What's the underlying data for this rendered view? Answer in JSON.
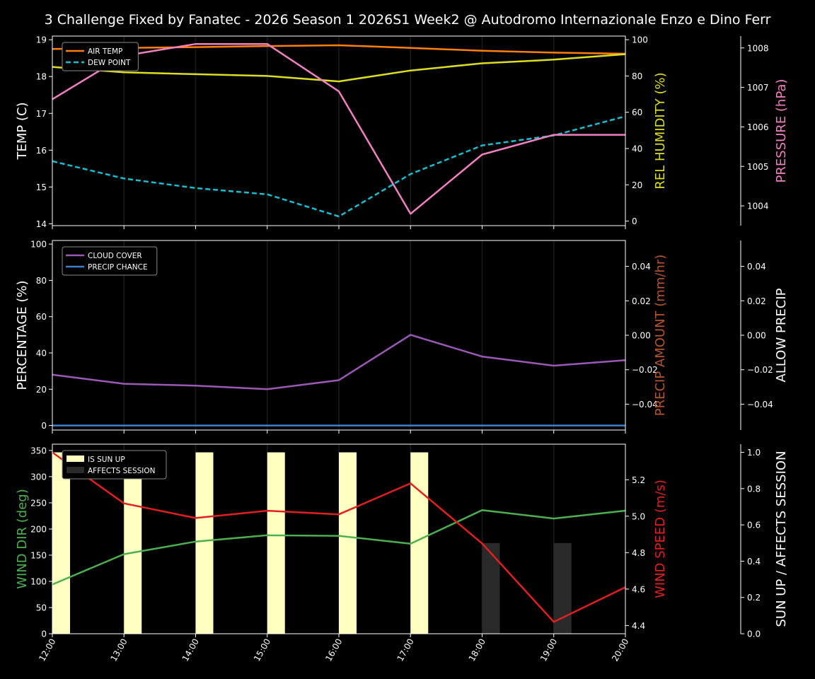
{
  "title": "3 Challenge Fixed by Fanatec - 2026 Season 1 2026S1 Week2 @ Autodromo Internazionale Enzo e Dino Ferr",
  "chart_data": [
    {
      "type": "line",
      "x": [
        "12:00",
        "13:00",
        "14:00",
        "15:00",
        "16:00",
        "17:00",
        "18:00",
        "19:00",
        "20:00"
      ],
      "series": [
        {
          "name": "AIR TEMP",
          "axis": "TEMP (C)",
          "color": "#ff7f0e",
          "style": "solid",
          "values": [
            18.75,
            18.78,
            18.8,
            18.83,
            18.85,
            18.78,
            18.7,
            18.65,
            18.62
          ]
        },
        {
          "name": "DEW POINT",
          "axis": "TEMP (C)",
          "color": "#17becf",
          "style": "dashed",
          "values": [
            15.7,
            15.23,
            14.97,
            14.8,
            14.2,
            15.35,
            16.13,
            16.4,
            16.92
          ]
        },
        {
          "name": "",
          "axis": "REL HUMIDITY (%)",
          "color": "#dddd22",
          "style": "solid",
          "values": [
            85,
            82,
            81,
            80,
            77,
            83,
            87,
            89,
            92
          ]
        },
        {
          "name": "",
          "axis": "PRESSURE (hPa)",
          "color": "#f080c0",
          "style": "solid",
          "values": [
            1006.7,
            1007.8,
            1008.1,
            1008.1,
            1006.9,
            1003.8,
            1005.3,
            1005.8,
            1005.8
          ]
        }
      ],
      "axes": [
        {
          "label": "TEMP (C)",
          "side": "left",
          "ylim": [
            13.95,
            19.1
          ],
          "ticks": [
            14,
            15,
            16,
            17,
            18,
            19
          ],
          "color": "#ffffff"
        },
        {
          "label": "REL HUMIDITY (%)",
          "side": "right",
          "ylim": [
            -2.5,
            102
          ],
          "ticks": [
            0,
            20,
            40,
            60,
            80,
            100
          ],
          "color": "#dddd22"
        },
        {
          "label": "PRESSURE (hPa)",
          "side": "far-right",
          "ylim": [
            1003.5,
            1008.3
          ],
          "ticks": [
            1004,
            1005,
            1006,
            1007,
            1008
          ],
          "color": "#f080c0"
        }
      ],
      "legend": "top-left",
      "grid": false
    },
    {
      "type": "line",
      "x": [
        "12:00",
        "13:00",
        "14:00",
        "15:00",
        "16:00",
        "17:00",
        "18:00",
        "19:00",
        "20:00"
      ],
      "series": [
        {
          "name": "CLOUD COVER",
          "axis": "PERCENTAGE (%)",
          "color": "#9b59b6",
          "style": "solid",
          "values": [
            28,
            23,
            22,
            20,
            25,
            50,
            38,
            33,
            36
          ]
        },
        {
          "name": "PRECIP CHANCE",
          "axis": "PERCENTAGE (%)",
          "color": "#3f7fd0",
          "style": "solid",
          "values": [
            0,
            0,
            0,
            0,
            0,
            0,
            0,
            0,
            0
          ]
        }
      ],
      "axes": [
        {
          "label": "PERCENTAGE (%)",
          "side": "left",
          "ylim": [
            -2.5,
            102
          ],
          "ticks": [
            0,
            20,
            40,
            60,
            80,
            100
          ],
          "color": "#ffffff"
        },
        {
          "label": "PRECIP AMOUNT (mm/hr)",
          "side": "right",
          "ylim": [
            -0.055,
            0.055
          ],
          "ticks": [
            -0.04,
            -0.02,
            0.0,
            0.02,
            0.04
          ],
          "tick_labels": [
            "−0.04",
            "−0.02",
            "0.00",
            "0.02",
            "0.04"
          ],
          "color": "#b5552d"
        },
        {
          "label": "ALLOW PRECIP",
          "side": "far-right",
          "ylim": [
            -0.055,
            0.055
          ],
          "ticks": [
            -0.04,
            -0.02,
            0.0,
            0.02,
            0.04
          ],
          "tick_labels": [
            "−0.04",
            "−0.02",
            "0.00",
            "0.02",
            "0.04"
          ],
          "color": "#ffffff"
        }
      ],
      "legend": "top-left",
      "grid": false
    },
    {
      "type": "line",
      "x": [
        "12:00",
        "13:00",
        "14:00",
        "15:00",
        "16:00",
        "17:00",
        "18:00",
        "19:00",
        "20:00"
      ],
      "series": [
        {
          "name": "",
          "axis": "WIND DIR (deg)",
          "color": "#4caf50",
          "style": "solid",
          "values": [
            94,
            152,
            176,
            188,
            187,
            172,
            236,
            220,
            235
          ]
        },
        {
          "name": "",
          "axis": "WIND SPEED (m/s)",
          "color": "#e02020",
          "style": "solid",
          "values": [
            5.35,
            5.07,
            4.99,
            5.03,
            5.01,
            5.18,
            4.85,
            4.42,
            4.61
          ]
        }
      ],
      "bars": [
        {
          "name": "IS SUN UP",
          "axis": "SUN UP / AFFECTS SESSION",
          "color": "#ffffc0",
          "x": [
            "12:00",
            "13:00",
            "14:00",
            "15:00",
            "16:00",
            "17:00"
          ],
          "values": [
            1,
            1,
            1,
            1,
            1,
            1
          ]
        },
        {
          "name": "AFFECTS SESSION",
          "axis": "SUN UP / AFFECTS SESSION",
          "color": "#2a2a2a",
          "x": [
            "18:00",
            "19:00"
          ],
          "values": [
            0.5,
            0.5
          ]
        }
      ],
      "axes": [
        {
          "label": "WIND DIR (deg)",
          "side": "left",
          "ylim": [
            0,
            362
          ],
          "ticks": [
            0,
            50,
            100,
            150,
            200,
            250,
            300,
            350
          ],
          "color": "#4caf50"
        },
        {
          "label": "WIND SPEED (m/s)",
          "side": "right",
          "ylim": [
            4.355,
            5.395
          ],
          "ticks": [
            4.4,
            4.6,
            4.8,
            5.0,
            5.2
          ],
          "color": "#e02020"
        },
        {
          "label": "SUN UP / AFFECTS SESSION",
          "side": "far-right",
          "ylim": [
            0,
            1.045
          ],
          "ticks": [
            0.0,
            0.2,
            0.4,
            0.6,
            0.8,
            1.0
          ],
          "color": "#ffffff"
        }
      ],
      "legend": "top-left",
      "grid": false
    }
  ],
  "legend_labels": {
    "air_temp": "AIR TEMP",
    "dew_point": "DEW POINT",
    "cloud_cover": "CLOUD COVER",
    "precip_chance": "PRECIP CHANCE",
    "sun_up": "IS SUN UP",
    "affects_session": "AFFECTS SESSION"
  }
}
